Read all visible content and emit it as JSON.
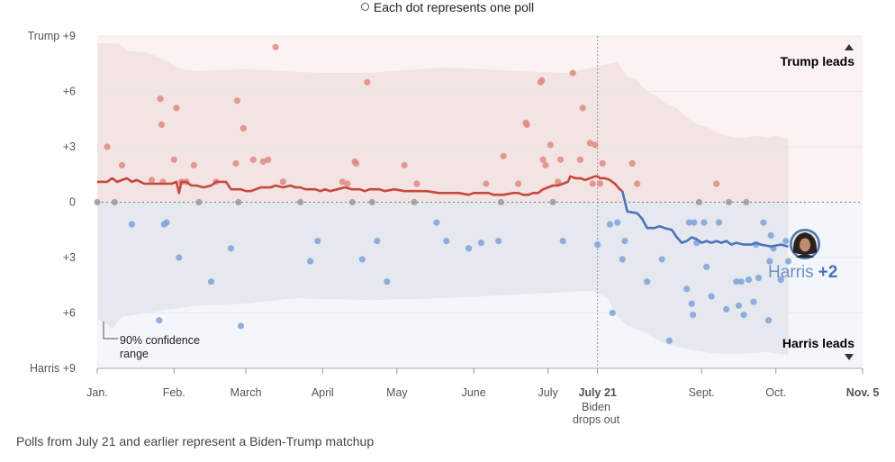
{
  "legend": {
    "text": "Each dot represents one poll"
  },
  "footnote": "Polls from July 21 and earlier represent a Biden-Trump matchup",
  "labels": {
    "trump_leads": "Trump leads",
    "harris_leads": "Harris leads",
    "ci_line1": "90% confidence",
    "ci_line2": "range",
    "harris_name": "Harris",
    "harris_margin": "+2",
    "biden_line1": "Biden",
    "biden_line2": "drops out"
  },
  "colors": {
    "trump": "#c7483e",
    "trump_dot": "#e08a80",
    "harris": "#4b73b8",
    "harris_dot": "#7fa2d8",
    "tie_dot": "#999999",
    "trump_band": "#f1e4e3",
    "harris_band": "#e5e9ef",
    "trump_bg": "#fbf3f2",
    "harris_bg": "#f3f6fa"
  },
  "chart_data": {
    "type": "scatter",
    "ylim": [
      -9,
      9
    ],
    "y_ticks": [
      {
        "value": 9,
        "label": "Trump +9"
      },
      {
        "value": 6,
        "label": "+6"
      },
      {
        "value": 3,
        "label": "+3"
      },
      {
        "value": 0,
        "label": "0"
      },
      {
        "value": -3,
        "label": "+3"
      },
      {
        "value": -6,
        "label": "+6"
      },
      {
        "value": -9,
        "label": "Harris +9"
      }
    ],
    "x_ticks": [
      {
        "value": 0,
        "label": "Jan."
      },
      {
        "value": 31,
        "label": "Feb."
      },
      {
        "value": 60,
        "label": "March"
      },
      {
        "value": 91,
        "label": "April"
      },
      {
        "value": 121,
        "label": "May"
      },
      {
        "value": 152,
        "label": "June"
      },
      {
        "value": 182,
        "label": "July"
      },
      {
        "value": 202,
        "label": "July 21"
      },
      {
        "value": 244,
        "label": "Sept."
      },
      {
        "value": 274,
        "label": "Oct."
      },
      {
        "value": 309,
        "label": "Nov. 5"
      }
    ],
    "biden_drop_x": 202,
    "xlim": [
      0,
      309
    ],
    "trump_line": [
      [
        0,
        1.1
      ],
      [
        4,
        1.1
      ],
      [
        6,
        1.3
      ],
      [
        8,
        1.1
      ],
      [
        10,
        1.2
      ],
      [
        12,
        1.3
      ],
      [
        14,
        1.1
      ],
      [
        16,
        1.2
      ],
      [
        19,
        1.0
      ],
      [
        23,
        1.0
      ],
      [
        26,
        1.0
      ],
      [
        28,
        1.0
      ],
      [
        30,
        1.0
      ],
      [
        32,
        1.1
      ],
      [
        33,
        0.5
      ],
      [
        34,
        1.1
      ],
      [
        36,
        1.1
      ],
      [
        38,
        0.9
      ],
      [
        40,
        0.9
      ],
      [
        43,
        0.8
      ],
      [
        46,
        0.9
      ],
      [
        48,
        1.1
      ],
      [
        50,
        1.1
      ],
      [
        52,
        1.1
      ],
      [
        54,
        0.7
      ],
      [
        56,
        0.7
      ],
      [
        58,
        0.7
      ],
      [
        60,
        0.6
      ],
      [
        62,
        0.6
      ],
      [
        64,
        0.7
      ],
      [
        66,
        0.8
      ],
      [
        68,
        0.8
      ],
      [
        70,
        0.8
      ],
      [
        72,
        0.9
      ],
      [
        75,
        0.8
      ],
      [
        78,
        0.9
      ],
      [
        80,
        0.8
      ],
      [
        82,
        0.8
      ],
      [
        84,
        0.7
      ],
      [
        86,
        0.7
      ],
      [
        88,
        0.7
      ],
      [
        90,
        0.6
      ],
      [
        92,
        0.7
      ],
      [
        94,
        0.6
      ],
      [
        97,
        0.7
      ],
      [
        100,
        0.8
      ],
      [
        103,
        0.7
      ],
      [
        106,
        0.7
      ],
      [
        108,
        0.6
      ],
      [
        110,
        0.7
      ],
      [
        114,
        0.7
      ],
      [
        116,
        0.6
      ],
      [
        120,
        0.7
      ],
      [
        124,
        0.6
      ],
      [
        128,
        0.6
      ],
      [
        133,
        0.6
      ],
      [
        138,
        0.5
      ],
      [
        142,
        0.5
      ],
      [
        146,
        0.5
      ],
      [
        150,
        0.4
      ],
      [
        152,
        0.5
      ],
      [
        155,
        0.5
      ],
      [
        158,
        0.5
      ],
      [
        160,
        0.4
      ],
      [
        164,
        0.4
      ],
      [
        168,
        0.5
      ],
      [
        170,
        0.5
      ],
      [
        172,
        0.4
      ],
      [
        174,
        0.4
      ],
      [
        176,
        0.5
      ],
      [
        178,
        0.5
      ],
      [
        180,
        0.7
      ],
      [
        182,
        0.8
      ],
      [
        184,
        0.9
      ],
      [
        186,
        0.9
      ],
      [
        188,
        1.0
      ],
      [
        190,
        1.1
      ],
      [
        191,
        1.4
      ],
      [
        193,
        1.3
      ],
      [
        195,
        1.3
      ],
      [
        197,
        1.2
      ],
      [
        199,
        1.3
      ],
      [
        201,
        1.4
      ],
      [
        202,
        1.4
      ],
      [
        203,
        1.3
      ],
      [
        205,
        1.3
      ],
      [
        207,
        1.2
      ],
      [
        209,
        1.0
      ],
      [
        211,
        0.7
      ],
      [
        212,
        0.6
      ]
    ],
    "harris_line": [
      [
        212,
        0.6
      ],
      [
        214,
        -0.5
      ],
      [
        218,
        -0.6
      ],
      [
        220,
        -0.9
      ],
      [
        222,
        -1.4
      ],
      [
        225,
        -1.4
      ],
      [
        227,
        -1.3
      ],
      [
        229,
        -1.4
      ],
      [
        232,
        -1.5
      ],
      [
        234,
        -1.9
      ],
      [
        236,
        -2.2
      ],
      [
        238,
        -2.1
      ],
      [
        240,
        -1.9
      ],
      [
        242,
        -2.0
      ],
      [
        244,
        -2.2
      ],
      [
        246,
        -2.1
      ],
      [
        248,
        -2.2
      ],
      [
        250,
        -2.1
      ],
      [
        252,
        -2.2
      ],
      [
        254,
        -2.1
      ],
      [
        256,
        -2.3
      ],
      [
        258,
        -2.2
      ],
      [
        261,
        -2.3
      ],
      [
        264,
        -2.3
      ],
      [
        266,
        -2.2
      ],
      [
        268,
        -2.3
      ],
      [
        272,
        -2.4
      ],
      [
        276,
        -2.3
      ],
      [
        279,
        -2.4
      ]
    ],
    "band_upper": [
      [
        0,
        8.6
      ],
      [
        8,
        8.6
      ],
      [
        10,
        8.5
      ],
      [
        12,
        8.2
      ],
      [
        20,
        8.1
      ],
      [
        26,
        7.8
      ],
      [
        34,
        7.2
      ],
      [
        40,
        7.1
      ],
      [
        60,
        7.2
      ],
      [
        90,
        7.0
      ],
      [
        110,
        7.0
      ],
      [
        140,
        7.3
      ],
      [
        170,
        7.1
      ],
      [
        190,
        7.0
      ],
      [
        200,
        7.3
      ],
      [
        210,
        7.6
      ],
      [
        214,
        6.8
      ],
      [
        218,
        6.6
      ],
      [
        222,
        6.0
      ],
      [
        226,
        5.7
      ],
      [
        230,
        5.3
      ],
      [
        234,
        5.1
      ],
      [
        238,
        4.6
      ],
      [
        242,
        4.2
      ],
      [
        246,
        4.1
      ],
      [
        250,
        3.8
      ],
      [
        254,
        3.6
      ],
      [
        258,
        3.5
      ],
      [
        262,
        3.5
      ],
      [
        266,
        3.6
      ],
      [
        270,
        3.5
      ],
      [
        274,
        3.6
      ],
      [
        279,
        3.4
      ]
    ],
    "band_lower": [
      [
        0,
        -6.4
      ],
      [
        4,
        -6.6
      ],
      [
        6,
        -6.9
      ],
      [
        10,
        -6.2
      ],
      [
        20,
        -6.0
      ],
      [
        30,
        -5.8
      ],
      [
        40,
        -5.6
      ],
      [
        60,
        -5.5
      ],
      [
        80,
        -5.2
      ],
      [
        110,
        -5.3
      ],
      [
        140,
        -5.2
      ],
      [
        170,
        -5.0
      ],
      [
        200,
        -4.8
      ],
      [
        206,
        -5.2
      ],
      [
        210,
        -6.2
      ],
      [
        214,
        -6.7
      ],
      [
        220,
        -7.0
      ],
      [
        230,
        -7.7
      ],
      [
        240,
        -8.0
      ],
      [
        250,
        -8.2
      ],
      [
        260,
        -8.2
      ],
      [
        270,
        -8.1
      ],
      [
        279,
        -8.3
      ]
    ],
    "polls": [
      {
        "x": 0,
        "y": 0.0
      },
      {
        "x": 4,
        "y": 3.0
      },
      {
        "x": 7,
        "y": 0.0
      },
      {
        "x": 10,
        "y": 2.0
      },
      {
        "x": 14,
        "y": -1.2
      },
      {
        "x": 22,
        "y": 1.2
      },
      {
        "x": 25,
        "y": -6.4
      },
      {
        "x": 25.5,
        "y": 5.6
      },
      {
        "x": 26,
        "y": 4.2
      },
      {
        "x": 26.5,
        "y": 1.1
      },
      {
        "x": 27,
        "y": -1.2
      },
      {
        "x": 28,
        "y": -1.1
      },
      {
        "x": 31,
        "y": 2.3
      },
      {
        "x": 32,
        "y": 5.1
      },
      {
        "x": 33,
        "y": -3.0
      },
      {
        "x": 34,
        "y": 1.1
      },
      {
        "x": 36,
        "y": 1.1
      },
      {
        "x": 39,
        "y": 2.0
      },
      {
        "x": 41,
        "y": 0.0
      },
      {
        "x": 46,
        "y": -4.3
      },
      {
        "x": 48,
        "y": 1.1
      },
      {
        "x": 54,
        "y": -2.5
      },
      {
        "x": 56,
        "y": 2.1
      },
      {
        "x": 56.5,
        "y": 5.5
      },
      {
        "x": 57,
        "y": 0.0
      },
      {
        "x": 58,
        "y": -6.7
      },
      {
        "x": 59,
        "y": 4.0
      },
      {
        "x": 63,
        "y": 2.3
      },
      {
        "x": 67,
        "y": 2.2
      },
      {
        "x": 69,
        "y": 2.3
      },
      {
        "x": 72,
        "y": 8.4
      },
      {
        "x": 75,
        "y": 1.1
      },
      {
        "x": 82,
        "y": 0.0
      },
      {
        "x": 86,
        "y": -3.2
      },
      {
        "x": 89,
        "y": -2.1
      },
      {
        "x": 99,
        "y": 1.1
      },
      {
        "x": 101,
        "y": 1.0
      },
      {
        "x": 103,
        "y": 0.0
      },
      {
        "x": 104,
        "y": 2.2
      },
      {
        "x": 104.5,
        "y": 2.1
      },
      {
        "x": 107,
        "y": -3.1
      },
      {
        "x": 109,
        "y": 6.5
      },
      {
        "x": 111,
        "y": 0.0
      },
      {
        "x": 113,
        "y": -2.1
      },
      {
        "x": 117,
        "y": -4.3
      },
      {
        "x": 124,
        "y": 2.0
      },
      {
        "x": 128,
        "y": 0.0
      },
      {
        "x": 129,
        "y": 1.0
      },
      {
        "x": 137,
        "y": -1.1
      },
      {
        "x": 141,
        "y": -2.1
      },
      {
        "x": 150,
        "y": -2.5
      },
      {
        "x": 155,
        "y": -2.2
      },
      {
        "x": 157,
        "y": 1.0
      },
      {
        "x": 162,
        "y": -2.1
      },
      {
        "x": 163,
        "y": 0.0
      },
      {
        "x": 164,
        "y": 2.5
      },
      {
        "x": 170,
        "y": 1.0
      },
      {
        "x": 173,
        "y": 4.3
      },
      {
        "x": 173.5,
        "y": 4.2
      },
      {
        "x": 179,
        "y": 6.5
      },
      {
        "x": 179.5,
        "y": 6.6
      },
      {
        "x": 180,
        "y": 2.3
      },
      {
        "x": 181,
        "y": 2.0
      },
      {
        "x": 183,
        "y": 3.1
      },
      {
        "x": 184,
        "y": 0.0
      },
      {
        "x": 186,
        "y": 1.1
      },
      {
        "x": 187,
        "y": 2.3
      },
      {
        "x": 188,
        "y": -2.1
      },
      {
        "x": 192,
        "y": 7.0
      },
      {
        "x": 195,
        "y": 2.3
      },
      {
        "x": 196,
        "y": 5.1
      },
      {
        "x": 199,
        "y": 3.2
      },
      {
        "x": 200,
        "y": 1.0
      },
      {
        "x": 201,
        "y": 3.1
      },
      {
        "x": 202,
        "y": -2.3
      },
      {
        "x": 203,
        "y": 1.0
      },
      {
        "x": 204,
        "y": 2.1
      },
      {
        "x": 207,
        "y": -1.2
      },
      {
        "x": 208,
        "y": -6.0
      },
      {
        "x": 210,
        "y": -1.1
      },
      {
        "x": 212,
        "y": -3.1
      },
      {
        "x": 213,
        "y": -2.1
      },
      {
        "x": 216,
        "y": 2.1
      },
      {
        "x": 218,
        "y": 1.0
      },
      {
        "x": 222,
        "y": -4.3
      },
      {
        "x": 228,
        "y": -3.1
      },
      {
        "x": 231,
        "y": -7.5
      },
      {
        "x": 238,
        "y": -4.7
      },
      {
        "x": 239,
        "y": -1.1
      },
      {
        "x": 240,
        "y": -5.5
      },
      {
        "x": 240.5,
        "y": -6.1
      },
      {
        "x": 241,
        "y": -1.1
      },
      {
        "x": 242,
        "y": -2.2
      },
      {
        "x": 243,
        "y": 0.0
      },
      {
        "x": 245,
        "y": -1.1
      },
      {
        "x": 246,
        "y": -3.5
      },
      {
        "x": 248,
        "y": -5.1
      },
      {
        "x": 250,
        "y": 1.0
      },
      {
        "x": 251,
        "y": -1.1
      },
      {
        "x": 254,
        "y": -5.8
      },
      {
        "x": 255,
        "y": 0.0
      },
      {
        "x": 258,
        "y": -4.3
      },
      {
        "x": 259,
        "y": -5.6
      },
      {
        "x": 260,
        "y": -4.3
      },
      {
        "x": 261,
        "y": -6.1
      },
      {
        "x": 262,
        "y": 0.0
      },
      {
        "x": 263,
        "y": -4.2
      },
      {
        "x": 265,
        "y": -5.4
      },
      {
        "x": 266,
        "y": -2.3
      },
      {
        "x": 267,
        "y": -4.1
      },
      {
        "x": 269,
        "y": -1.1
      },
      {
        "x": 271,
        "y": -6.4
      },
      {
        "x": 271.5,
        "y": -3.2
      },
      {
        "x": 272,
        "y": -1.8
      },
      {
        "x": 273,
        "y": -2.5
      },
      {
        "x": 276,
        "y": -4.2
      },
      {
        "x": 278,
        "y": -2.1
      },
      {
        "x": 279,
        "y": -3.2
      }
    ]
  }
}
